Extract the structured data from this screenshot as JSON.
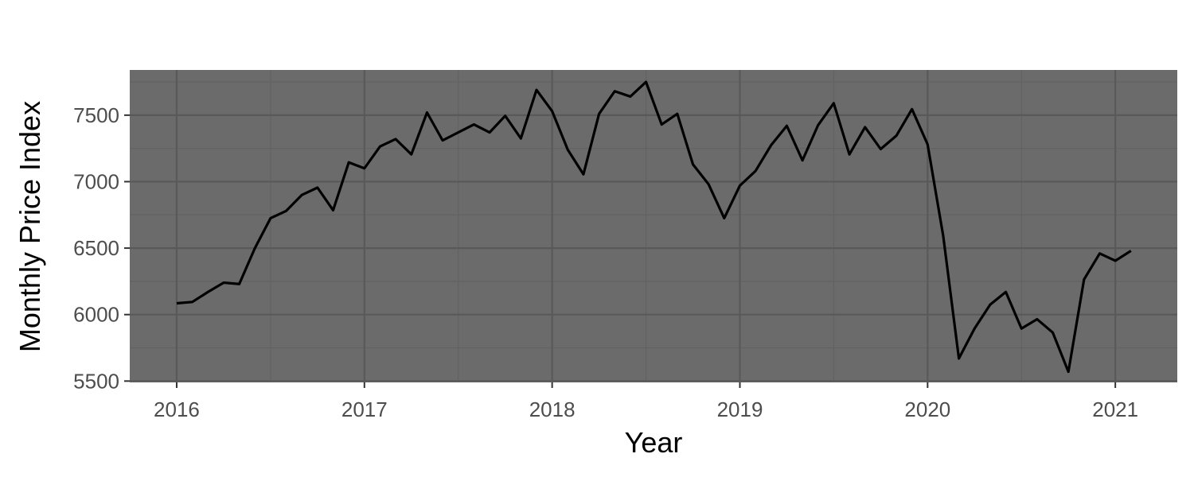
{
  "chart_data": {
    "type": "line",
    "title": "",
    "xlabel": "Year",
    "ylabel": "Monthly Price Index",
    "xlim": [
      2015.75,
      2021.33
    ],
    "ylim": [
      5490,
      7840
    ],
    "x_ticks": [
      2016,
      2017,
      2018,
      2019,
      2020,
      2021
    ],
    "y_ticks": [
      5500,
      6000,
      6500,
      7000,
      7500
    ],
    "grid": true,
    "colors": {
      "panel_background": "#6b6b6b",
      "grid_major": "#595959",
      "grid_minor": "#626262",
      "line": "#000000",
      "tick_mark": "#333333",
      "tick_label": "#4d4d4d"
    },
    "series": [
      {
        "x": [
          "2016-01",
          "2016-02",
          "2016-03",
          "2016-04",
          "2016-05",
          "2016-06",
          "2016-07",
          "2016-08",
          "2016-09",
          "2016-10",
          "2016-11",
          "2016-12",
          "2017-01",
          "2017-02",
          "2017-03",
          "2017-04",
          "2017-05",
          "2017-06",
          "2017-07",
          "2017-08",
          "2017-09",
          "2017-10",
          "2017-11",
          "2017-12",
          "2018-01",
          "2018-02",
          "2018-03",
          "2018-04",
          "2018-05",
          "2018-06",
          "2018-07",
          "2018-08",
          "2018-09",
          "2018-10",
          "2018-11",
          "2018-12",
          "2019-01",
          "2019-02",
          "2019-03",
          "2019-04",
          "2019-05",
          "2019-06",
          "2019-07",
          "2019-08",
          "2019-09",
          "2019-10",
          "2019-11",
          "2019-12",
          "2020-01",
          "2020-02",
          "2020-03",
          "2020-04",
          "2020-05",
          "2020-06",
          "2020-07",
          "2020-08",
          "2020-09",
          "2020-10",
          "2020-11",
          "2020-12",
          "2021-01",
          "2021-02"
        ],
        "values": [
          6085,
          6095,
          6170,
          6240,
          6230,
          6500,
          6725,
          6780,
          6900,
          6955,
          6785,
          7145,
          7100,
          7265,
          7320,
          7205,
          7520,
          7310,
          7370,
          7430,
          7370,
          7495,
          7325,
          7690,
          7530,
          7240,
          7055,
          7510,
          7680,
          7640,
          7750,
          7430,
          7510,
          7130,
          6980,
          6725,
          6970,
          7080,
          7275,
          7420,
          7160,
          7425,
          7590,
          7205,
          7410,
          7245,
          7345,
          7545,
          7280,
          6590,
          5670,
          5895,
          6075,
          6170,
          5895,
          5965,
          5865,
          5570,
          6265,
          6460,
          6405,
          6480
        ]
      }
    ]
  }
}
